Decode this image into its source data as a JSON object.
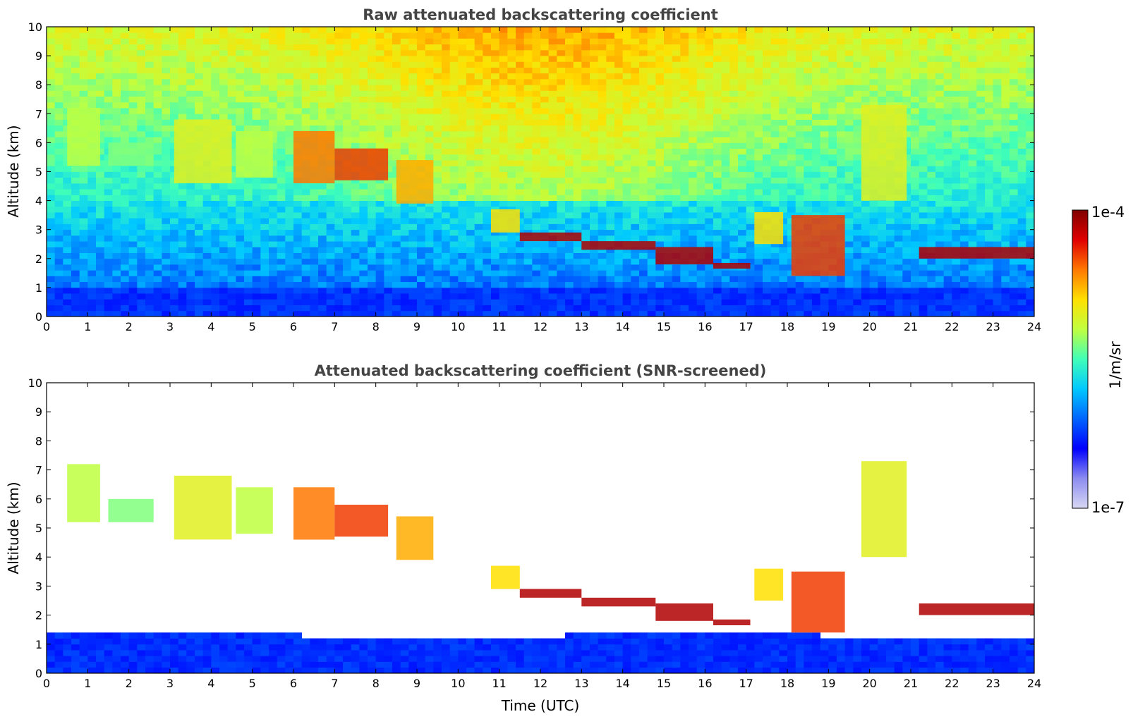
{
  "chart_data": [
    {
      "type": "heatmap",
      "title": "Raw attenuated backscattering coefficient",
      "xlabel": "",
      "ylabel": "Altitude (km)",
      "xlim": [
        0,
        24
      ],
      "ylim": [
        0,
        10
      ],
      "xticks": [
        "0",
        "1",
        "2",
        "3",
        "4",
        "5",
        "6",
        "7",
        "8",
        "9",
        "10",
        "11",
        "12",
        "13",
        "14",
        "15",
        "16",
        "17",
        "18",
        "19",
        "20",
        "21",
        "22",
        "23",
        "24"
      ],
      "yticks": [
        "0",
        "1",
        "2",
        "3",
        "4",
        "5",
        "6",
        "7",
        "8",
        "9",
        "10"
      ],
      "grid": false,
      "screened": false,
      "colorscale": "jet",
      "cloud_layers": [
        {
          "t": [
            0.5,
            1.3
          ],
          "alt": [
            5.2,
            7.2
          ],
          "level": 0.6
        },
        {
          "t": [
            1.5,
            2.6
          ],
          "alt": [
            5.2,
            6.0
          ],
          "level": 0.55
        },
        {
          "t": [
            3.1,
            4.5
          ],
          "alt": [
            4.6,
            6.8
          ],
          "level": 0.65
        },
        {
          "t": [
            4.6,
            5.5
          ],
          "alt": [
            4.8,
            6.4
          ],
          "level": 0.6
        },
        {
          "t": [
            6.0,
            7.0
          ],
          "alt": [
            4.6,
            6.4
          ],
          "level": 0.8
        },
        {
          "t": [
            7.0,
            8.3
          ],
          "alt": [
            4.7,
            5.8
          ],
          "level": 0.85
        },
        {
          "t": [
            8.5,
            9.4
          ],
          "alt": [
            3.9,
            5.4
          ],
          "level": 0.75
        },
        {
          "t": [
            10.8,
            11.5
          ],
          "alt": [
            2.9,
            3.7
          ],
          "level": 0.7
        },
        {
          "t": [
            11.5,
            13.0
          ],
          "alt": [
            2.6,
            2.9
          ],
          "level": 0.95
        },
        {
          "t": [
            13.0,
            14.8
          ],
          "alt": [
            2.3,
            2.6
          ],
          "level": 0.95
        },
        {
          "t": [
            14.8,
            16.2
          ],
          "alt": [
            1.8,
            2.4
          ],
          "level": 0.95
        },
        {
          "t": [
            16.2,
            17.1
          ],
          "alt": [
            1.65,
            1.85
          ],
          "level": 0.95
        },
        {
          "t": [
            17.2,
            17.9
          ],
          "alt": [
            2.5,
            3.6
          ],
          "level": 0.7
        },
        {
          "t": [
            18.1,
            19.4
          ],
          "alt": [
            1.4,
            3.5
          ],
          "level": 0.85
        },
        {
          "t": [
            19.8,
            20.9
          ],
          "alt": [
            4.0,
            7.3
          ],
          "level": 0.65
        },
        {
          "t": [
            21.2,
            24.0
          ],
          "alt": [
            2.0,
            2.4
          ],
          "level": 0.95
        }
      ]
    },
    {
      "type": "heatmap",
      "title": "Attenuated backscattering coefficient (SNR-screened)",
      "xlabel": "Time (UTC)",
      "ylabel": "Altitude (km)",
      "xlim": [
        0,
        24
      ],
      "ylim": [
        0,
        10
      ],
      "xticks": [
        "0",
        "1",
        "2",
        "3",
        "4",
        "5",
        "6",
        "7",
        "8",
        "9",
        "10",
        "11",
        "12",
        "13",
        "14",
        "15",
        "16",
        "17",
        "18",
        "19",
        "20",
        "21",
        "22",
        "23",
        "24"
      ],
      "yticks": [
        "0",
        "1",
        "2",
        "3",
        "4",
        "5",
        "6",
        "7",
        "8",
        "9",
        "10"
      ],
      "grid": false,
      "screened": true,
      "colorscale": "jet",
      "cloud_layers": [
        {
          "t": [
            0.5,
            1.3
          ],
          "alt": [
            5.2,
            7.2
          ],
          "level": 0.6
        },
        {
          "t": [
            1.5,
            2.6
          ],
          "alt": [
            5.2,
            6.0
          ],
          "level": 0.55
        },
        {
          "t": [
            3.1,
            4.5
          ],
          "alt": [
            4.6,
            6.8
          ],
          "level": 0.65
        },
        {
          "t": [
            4.6,
            5.5
          ],
          "alt": [
            4.8,
            6.4
          ],
          "level": 0.6
        },
        {
          "t": [
            6.0,
            7.0
          ],
          "alt": [
            4.6,
            6.4
          ],
          "level": 0.8
        },
        {
          "t": [
            7.0,
            8.3
          ],
          "alt": [
            4.7,
            5.8
          ],
          "level": 0.85
        },
        {
          "t": [
            8.5,
            9.4
          ],
          "alt": [
            3.9,
            5.4
          ],
          "level": 0.75
        },
        {
          "t": [
            10.8,
            11.5
          ],
          "alt": [
            2.9,
            3.7
          ],
          "level": 0.7
        },
        {
          "t": [
            11.5,
            13.0
          ],
          "alt": [
            2.6,
            2.9
          ],
          "level": 0.95
        },
        {
          "t": [
            13.0,
            14.8
          ],
          "alt": [
            2.3,
            2.6
          ],
          "level": 0.95
        },
        {
          "t": [
            14.8,
            16.2
          ],
          "alt": [
            1.8,
            2.4
          ],
          "level": 0.95
        },
        {
          "t": [
            16.2,
            17.1
          ],
          "alt": [
            1.65,
            1.85
          ],
          "level": 0.95
        },
        {
          "t": [
            17.2,
            17.9
          ],
          "alt": [
            2.5,
            3.6
          ],
          "level": 0.7
        },
        {
          "t": [
            18.1,
            19.4
          ],
          "alt": [
            1.4,
            3.5
          ],
          "level": 0.85
        },
        {
          "t": [
            19.8,
            20.9
          ],
          "alt": [
            4.0,
            7.3
          ],
          "level": 0.65
        },
        {
          "t": [
            21.2,
            24.0
          ],
          "alt": [
            2.0,
            2.4
          ],
          "level": 0.95
        }
      ]
    }
  ],
  "colorbar": {
    "label": "1/m/sr",
    "max_label": "1e-4",
    "min_label": "1e-7",
    "colors": [
      "#d8d8f4",
      "#8c8cf0",
      "#0000ff",
      "#0064ff",
      "#00c8ff",
      "#40ffb8",
      "#c0ff40",
      "#ffe000",
      "#ff7800",
      "#e00000",
      "#800000"
    ]
  }
}
